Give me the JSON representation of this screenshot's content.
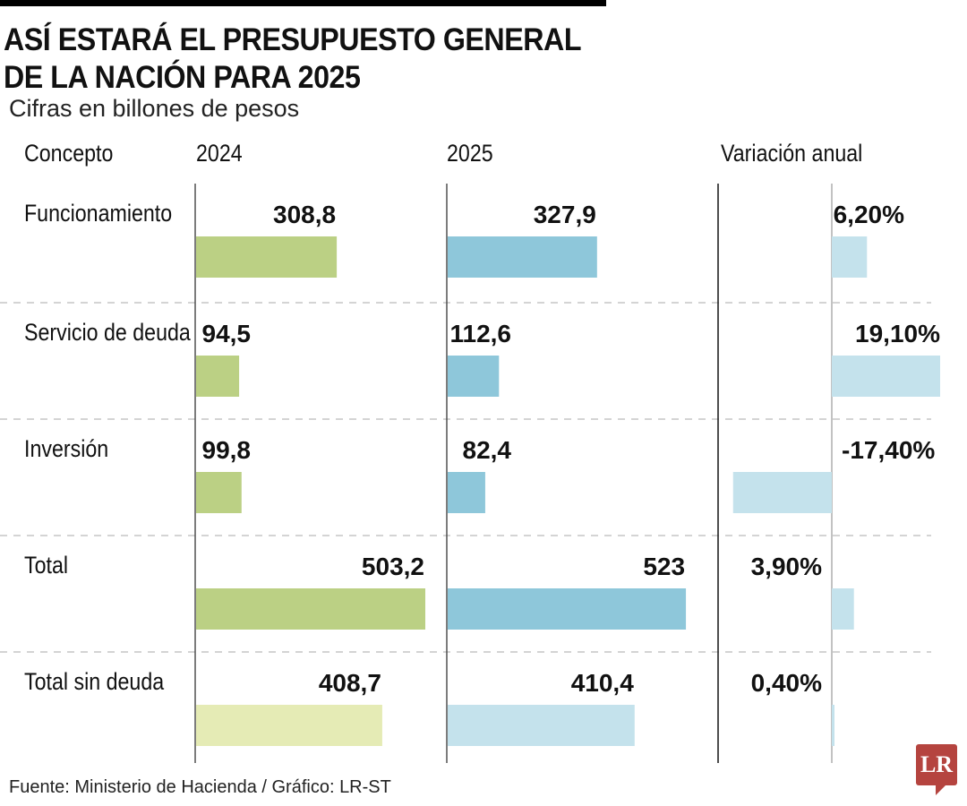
{
  "title_line1": "ASÍ ESTARÁ EL PRESUPUESTO GENERAL",
  "title_line2": "DE LA NACIÓN PARA 2025",
  "subtitle": "Cifras en billones de pesos",
  "headers": {
    "concepto": "Concepto",
    "y2024": "2024",
    "y2025": "2025",
    "variacion": "Variación anual"
  },
  "footer": "Fuente: Ministerio de Hacienda / Gráfico: LR-ST",
  "logo": "LR",
  "colors": {
    "green": "#bbd084",
    "green_light": "#e5ebb5",
    "blue": "#8ec7da",
    "blue_light": "#c4e2ec",
    "variation": "#c4e2ec",
    "logo": "#b5443f"
  },
  "chart_data": {
    "type": "bar",
    "orientation": "horizontal",
    "title": "ASÍ ESTARÁ EL PRESUPUESTO GENERAL DE LA NACIÓN PARA 2025",
    "subtitle": "Cifras en billones de pesos",
    "categories": [
      "Funcionamiento",
      "Servicio de deuda",
      "Inversión",
      "Total",
      "Total sin deuda"
    ],
    "series": [
      {
        "name": "2024",
        "values": [
          308.8,
          94.5,
          99.8,
          503.2,
          408.7
        ],
        "labels": [
          "308,8",
          "94,5",
          "99,8",
          "503,2",
          "408,7"
        ]
      },
      {
        "name": "2025",
        "values": [
          327.9,
          112.6,
          82.4,
          523,
          410.4
        ],
        "labels": [
          "327,9",
          "112,6",
          "82,4",
          "523",
          "410,4"
        ]
      },
      {
        "name": "Variación anual",
        "values": [
          6.2,
          19.1,
          -17.4,
          3.9,
          0.4
        ],
        "labels": [
          "6,20%",
          "19,10%",
          "-17,40%",
          "3,90%",
          "0,40%"
        ]
      }
    ],
    "highlight_light": [
      false,
      false,
      false,
      false,
      true
    ],
    "xlabel": "",
    "ylabel": "",
    "grid": "dashed row separators",
    "legend": "column headers"
  }
}
